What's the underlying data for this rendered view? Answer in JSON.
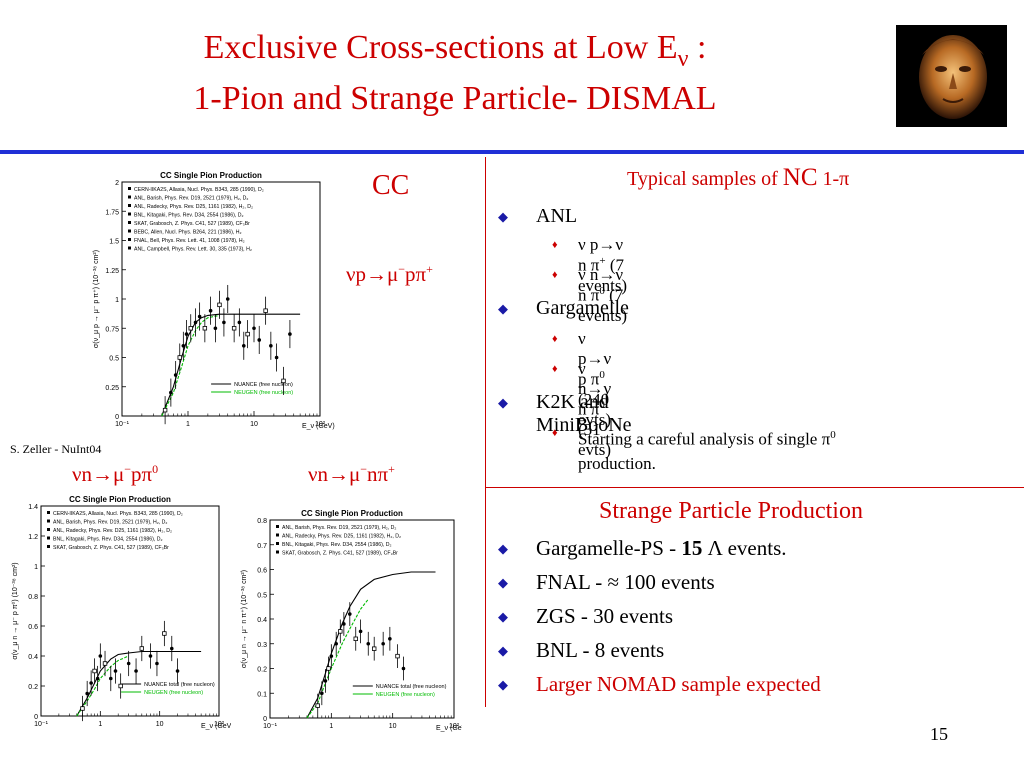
{
  "slide": {
    "title_line1": "Exclusive Cross-sections at Low E",
    "title_nu": "ν",
    "title_colon": " :",
    "title_line2": "1-Pion and Strange Particle- DISMAL",
    "page_number": "15",
    "credit": "S. Zeller - NuInt04",
    "accent_colors": {
      "title": "#cc0000",
      "rule": "#1f2fd6",
      "bullet_l1": "#1a1aa6",
      "bullet_l2": "#cc0000"
    }
  },
  "labels": {
    "cc": "CC",
    "reaction_main_a": "νp→μ",
    "reaction_main_sup1": "−",
    "reaction_main_b": "pπ",
    "reaction_main_sup2": "+",
    "reaction_left_a": "νn→μ",
    "reaction_left_sup1": "−",
    "reaction_left_b": "pπ",
    "reaction_left_sup2": "0",
    "reaction_right_a": "νn→μ",
    "reaction_right_sup1": "−",
    "reaction_right_b": "nπ",
    "reaction_right_sup2": "+"
  },
  "nc_section": {
    "heading_a": "Typical samples of ",
    "heading_nc": "NC",
    "heading_b": " 1-π",
    "items": [
      {
        "label": "ANL",
        "sub": [
          "ν p→ν n π",
          "+",
          " (7 events)",
          "ν n→ν n π",
          "0",
          " (7 events)"
        ]
      },
      {
        "label": "Gargamelle",
        "sub": [
          "ν p→ν p π",
          "0",
          " (240 evts)",
          "ν n→ν n π",
          "0",
          " (31 evts)"
        ]
      },
      {
        "label": "K2K and MiniBooNe",
        "sub": [
          "Starting a careful analysis of single π",
          "0",
          "production."
        ]
      }
    ]
  },
  "strange_section": {
    "heading": "Strange Particle Production",
    "item1_a": "Gargamelle-PS - ",
    "item1_b": "15",
    "item1_c": " Λ events.",
    "item2": "FNAL - ≈ 100 events",
    "item3": "ZGS - 30 events",
    "item4": "BNL - 8 events",
    "item5": "Larger NOMAD sample expected"
  },
  "chart_data": [
    {
      "type": "scatter",
      "title": "CC Single Pion Production",
      "xlabel": "E_ν (GeV)",
      "ylabel": "σ(ν_μ p → μ⁻ p π⁺) (10⁻³⁸ cm²)",
      "xscale": "log",
      "xlim": [
        0.1,
        100
      ],
      "ylim": [
        0,
        2
      ],
      "yticks": [
        "0",
        "0.25",
        "0.5",
        "0.75",
        "1",
        "1.25",
        "1.5",
        "1.75",
        "2"
      ],
      "xticks": [
        "10⁻¹",
        "1",
        "10",
        "10²"
      ],
      "legend": [
        "CERN-IIKA2S, Allasia, Nucl. Phys. B343, 285 (1990), D₂",
        "ANL, Barish, Phys. Rev. D19, 2521 (1979), H₂, D₂",
        "ANL, Radecky, Phys. Rev. D25, 1161 (1982), H₂, D₂",
        "BNL, Kitagaki, Phys. Rev. D34, 2554 (1986), D₂",
        "SKAT, Grabosch, Z. Phys. C41, 527 (1989), CF₃Br",
        "BEBC, Allen, Nucl. Phys. B264, 221 (1986), H₂",
        "FNAL, Bell, Phys. Rev. Lett. 41, 1008 (1978), H₂",
        "ANL, Campbell, Phys. Rev. Lett. 30, 335 (1973), H₂"
      ],
      "model_legend": [
        "NUANCE (free nucleon)",
        "NEUGEN (free nucleon)"
      ],
      "points": [
        [
          0.45,
          0.05
        ],
        [
          0.55,
          0.2
        ],
        [
          0.65,
          0.35
        ],
        [
          0.75,
          0.5
        ],
        [
          0.85,
          0.6
        ],
        [
          0.95,
          0.7
        ],
        [
          1.1,
          0.75
        ],
        [
          1.3,
          0.8
        ],
        [
          1.5,
          0.85
        ],
        [
          1.8,
          0.75
        ],
        [
          2.2,
          0.9
        ],
        [
          2.6,
          0.75
        ],
        [
          3,
          0.95
        ],
        [
          3.5,
          0.8
        ],
        [
          4,
          1.0
        ],
        [
          5,
          0.75
        ],
        [
          6,
          0.8
        ],
        [
          7,
          0.6
        ],
        [
          8,
          0.7
        ],
        [
          10,
          0.75
        ],
        [
          12,
          0.65
        ],
        [
          15,
          0.9
        ],
        [
          18,
          0.6
        ],
        [
          22,
          0.5
        ],
        [
          28,
          0.3
        ],
        [
          35,
          0.7
        ]
      ],
      "curves": [
        {
          "name": "NUANCE (free nucleon)",
          "color": "#000000",
          "x": [
            0.4,
            0.6,
            0.8,
            1,
            1.3,
            1.6,
            2,
            3,
            5,
            10,
            20,
            50
          ],
          "y": [
            0,
            0.25,
            0.5,
            0.68,
            0.8,
            0.84,
            0.86,
            0.87,
            0.87,
            0.87,
            0.87,
            0.87
          ]
        },
        {
          "name": "NEUGEN (free nucleon)",
          "color": "#00bb00",
          "x": [
            0.4,
            0.6,
            0.8,
            1,
            1.3,
            1.6,
            2,
            3
          ],
          "y": [
            0,
            0.2,
            0.42,
            0.6,
            0.73,
            0.8,
            0.84,
            0.86
          ]
        }
      ]
    },
    {
      "type": "scatter",
      "title": "CC Single Pion Production",
      "xlabel": "E_ν (GeV)",
      "ylabel": "σ(ν_μ n → μ⁻ p π⁰) (10⁻³⁸ cm²)",
      "xscale": "log",
      "xlim": [
        0.1,
        100
      ],
      "ylim": [
        0,
        1.4
      ],
      "yticks": [
        "0",
        "0.2",
        "0.4",
        "0.6",
        "0.8",
        "1",
        "1.2",
        "1.4"
      ],
      "xticks": [
        "10⁻¹",
        "1",
        "10",
        "10²"
      ],
      "legend": [
        "CERN-IIKA2S, Allasia, Nucl. Phys. B343, 285 (1990), D₂",
        "ANL, Barish, Phys. Rev. D19, 2521 (1979), H₂, D₂",
        "ANL, Radecky, Phys. Rev. D25, 1161 (1982), H₂, D₂",
        "BNL, Kitagaki, Phys. Rev. D34, 2554 (1986), D₂",
        "SKAT, Grabosch, Z. Phys. C41, 527 (1989), CF₃Br"
      ],
      "model_legend": [
        "NUANCE total (free nucleon)",
        "NEUGEN (free nucleon)"
      ],
      "points": [
        [
          0.5,
          0.05
        ],
        [
          0.6,
          0.15
        ],
        [
          0.7,
          0.22
        ],
        [
          0.8,
          0.3
        ],
        [
          0.9,
          0.25
        ],
        [
          1.0,
          0.4
        ],
        [
          1.2,
          0.35
        ],
        [
          1.5,
          0.25
        ],
        [
          1.8,
          0.3
        ],
        [
          2.2,
          0.2
        ],
        [
          3,
          0.35
        ],
        [
          4,
          0.3
        ],
        [
          5,
          0.45
        ],
        [
          7,
          0.4
        ],
        [
          9,
          0.35
        ],
        [
          12,
          0.55
        ],
        [
          16,
          0.45
        ],
        [
          20,
          0.3
        ]
      ],
      "curves": [
        {
          "name": "NUANCE total (free nucleon)",
          "color": "#000000",
          "x": [
            0.4,
            0.6,
            0.8,
            1,
            1.5,
            2,
            3,
            5,
            10,
            20,
            50
          ],
          "y": [
            0,
            0.12,
            0.22,
            0.3,
            0.38,
            0.41,
            0.42,
            0.43,
            0.43,
            0.43,
            0.43
          ]
        },
        {
          "name": "NEUGEN (free nucleon)",
          "color": "#00bb00",
          "x": [
            0.4,
            0.6,
            0.8,
            1,
            1.5,
            2,
            3
          ],
          "y": [
            0,
            0.1,
            0.18,
            0.25,
            0.33,
            0.37,
            0.4
          ]
        }
      ]
    },
    {
      "type": "scatter",
      "title": "CC Single Pion Production",
      "xlabel": "E_ν (GeV)",
      "ylabel": "σ(ν_μ n → μ⁻ n π⁺) (10⁻³⁸ cm²)",
      "xscale": "log",
      "xlim": [
        0.1,
        100
      ],
      "ylim": [
        0,
        0.8
      ],
      "yticks": [
        "0",
        "0.1",
        "0.2",
        "0.3",
        "0.4",
        "0.5",
        "0.6",
        "0.7",
        "0.8"
      ],
      "xticks": [
        "10⁻¹",
        "1",
        "10",
        "10²"
      ],
      "legend": [
        "ANL, Barish, Phys. Rev. D19, 2521 (1979), H₂, D₂",
        "ANL, Radecky, Phys. Rev. D25, 1161 (1982), H₂, D₂",
        "BNL, Kitagaki, Phys. Rev. D34, 2554 (1986), D₂",
        "SKAT, Grabosch, Z. Phys. C41, 527 (1989), CF₃Br"
      ],
      "model_legend": [
        "NUANCE total (free nucleon)",
        "NEUGEN (free nucleon)"
      ],
      "points": [
        [
          0.6,
          0.05
        ],
        [
          0.7,
          0.1
        ],
        [
          0.8,
          0.15
        ],
        [
          0.9,
          0.2
        ],
        [
          1.0,
          0.25
        ],
        [
          1.2,
          0.3
        ],
        [
          1.4,
          0.35
        ],
        [
          1.6,
          0.38
        ],
        [
          2,
          0.42
        ],
        [
          2.5,
          0.32
        ],
        [
          3,
          0.35
        ],
        [
          4,
          0.3
        ],
        [
          5,
          0.28
        ],
        [
          7,
          0.3
        ],
        [
          9,
          0.32
        ],
        [
          12,
          0.25
        ],
        [
          15,
          0.2
        ]
      ],
      "curves": [
        {
          "name": "NUANCE total (free nucleon)",
          "color": "#000000",
          "x": [
            0.4,
            0.6,
            0.8,
            1,
            1.5,
            2,
            3,
            5,
            10,
            20,
            50
          ],
          "y": [
            0,
            0.08,
            0.18,
            0.26,
            0.38,
            0.45,
            0.52,
            0.56,
            0.58,
            0.59,
            0.59
          ]
        },
        {
          "name": "NEUGEN (free nucleon)",
          "color": "#00bb00",
          "x": [
            0.4,
            0.6,
            0.8,
            1,
            1.5,
            2,
            3,
            4
          ],
          "y": [
            0,
            0.06,
            0.14,
            0.2,
            0.3,
            0.36,
            0.44,
            0.48
          ]
        }
      ]
    }
  ]
}
